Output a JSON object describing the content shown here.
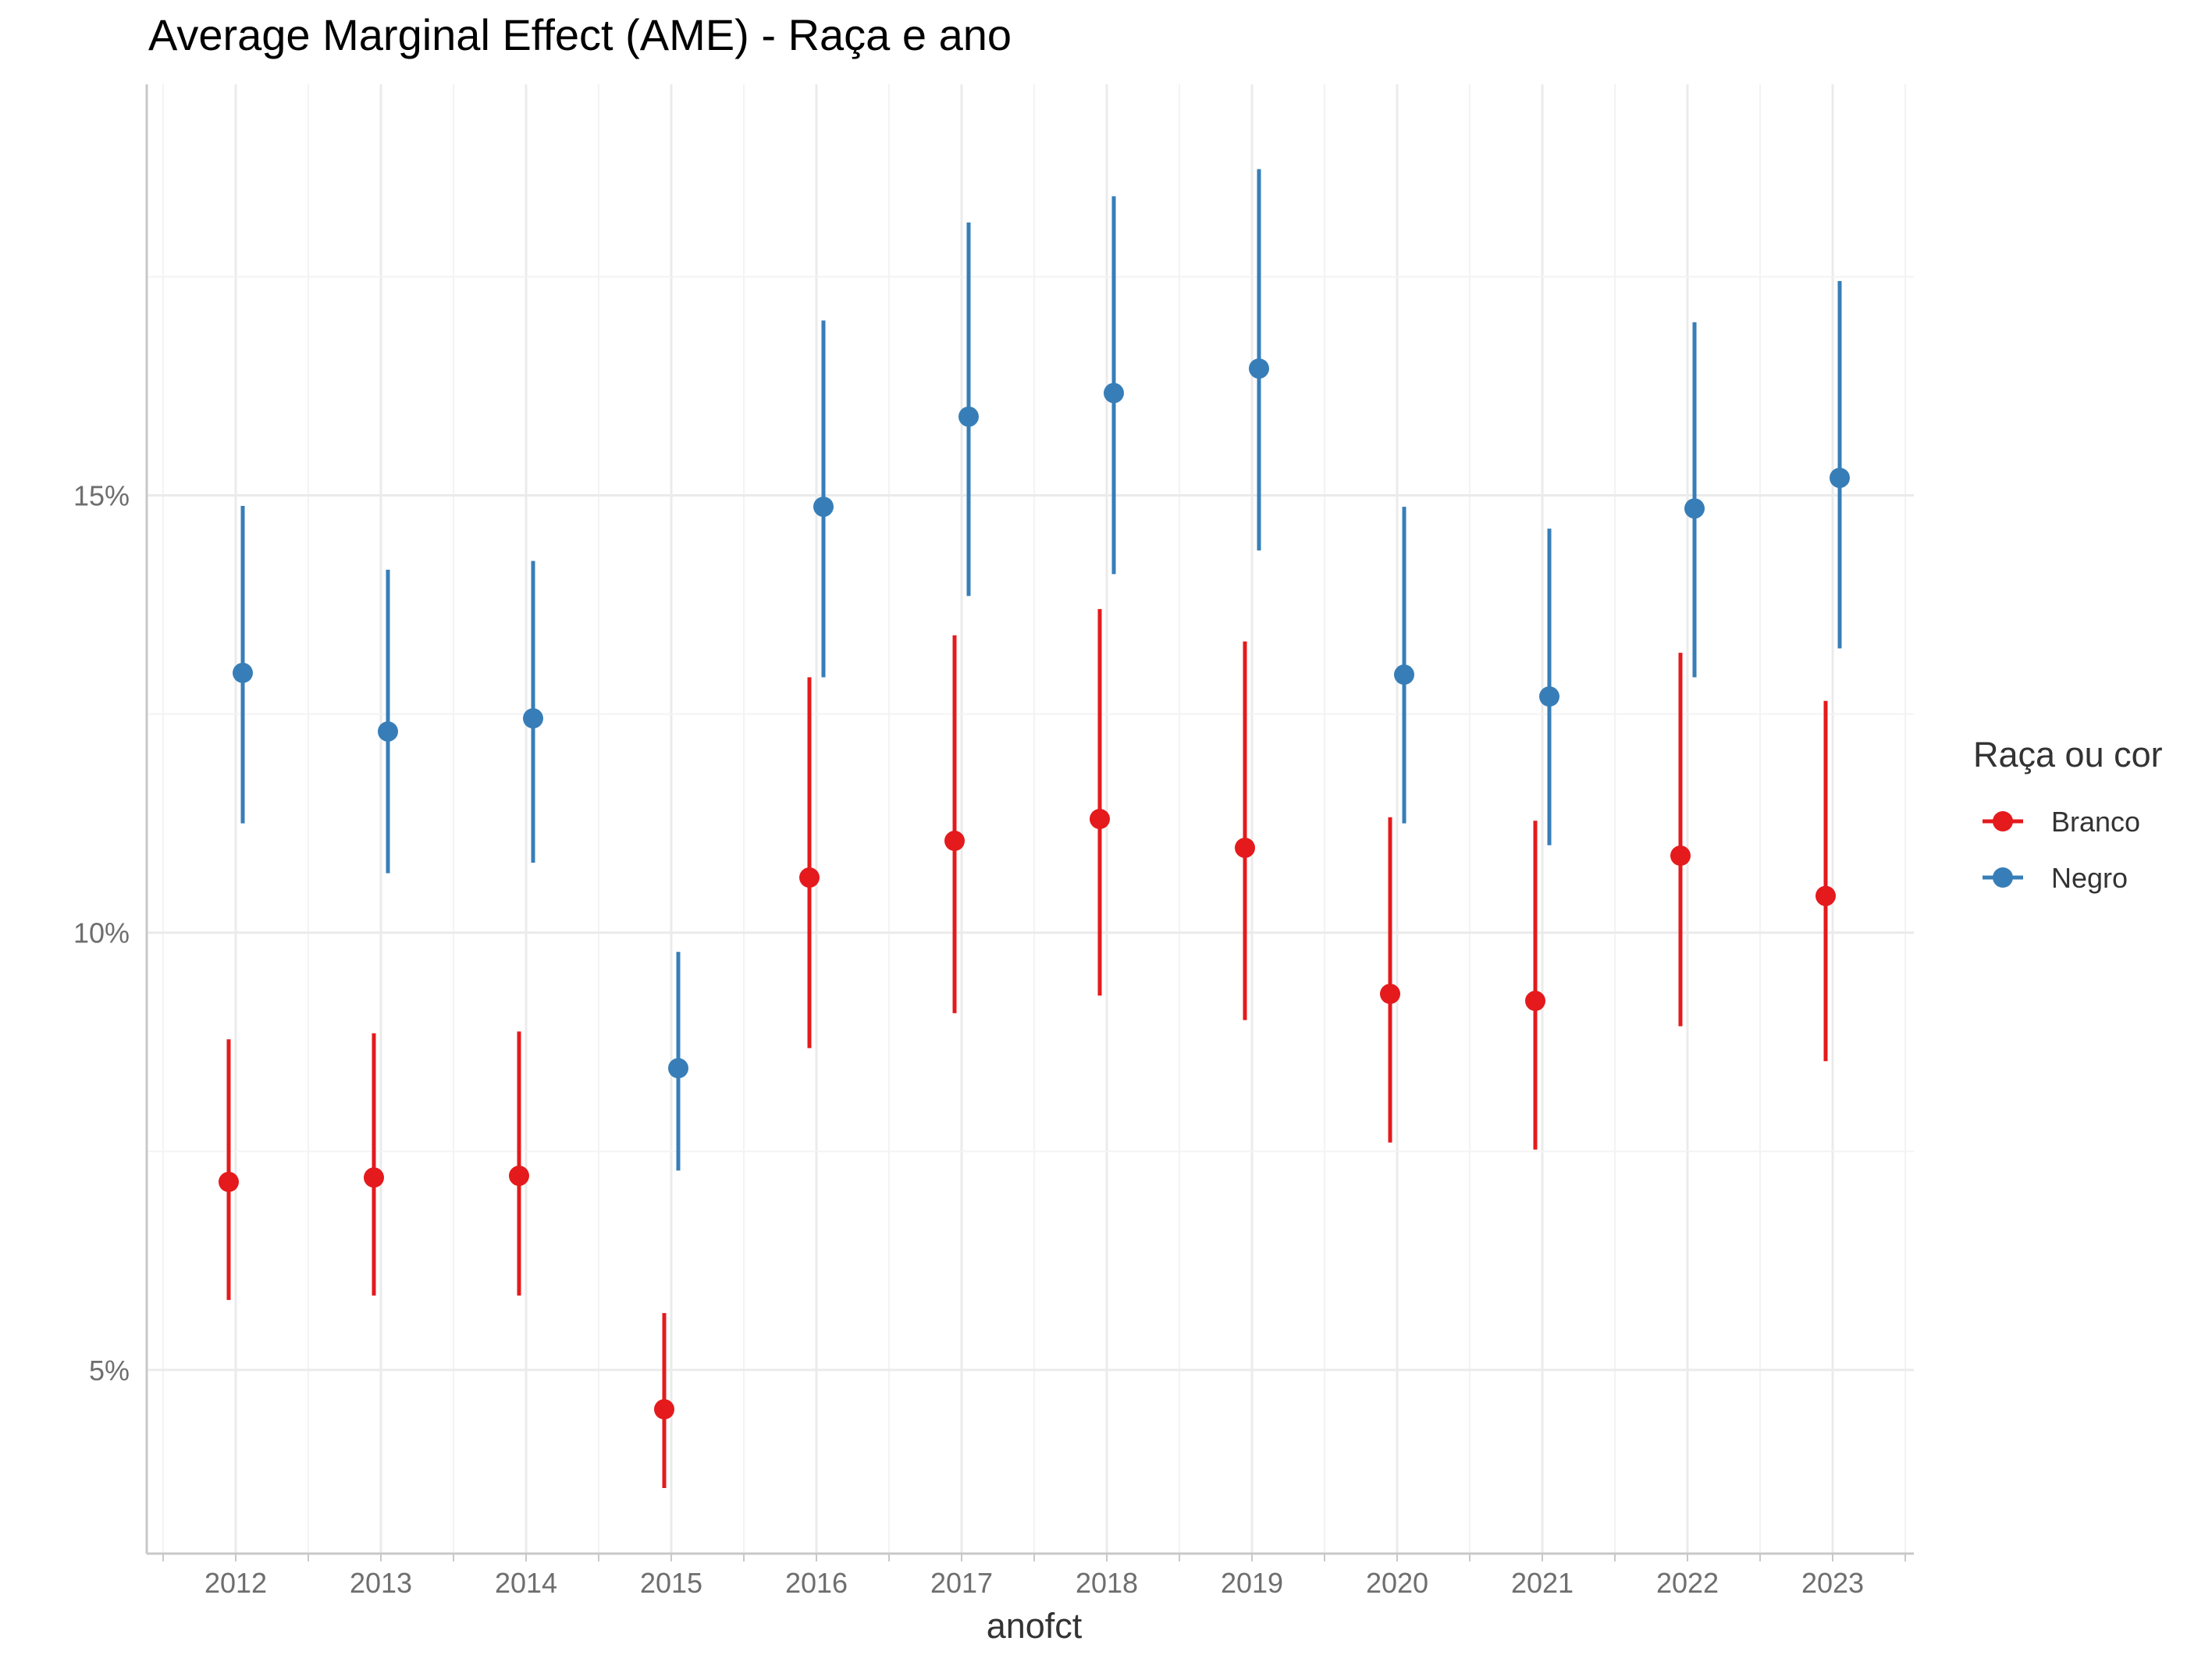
{
  "chart_data": {
    "type": "scatter",
    "title": "Average Marginal Effect (AME) - Raça e ano",
    "xlabel": "anofct",
    "ylabel": "",
    "categories": [
      "2012",
      "2013",
      "2014",
      "2015",
      "2016",
      "2017",
      "2018",
      "2019",
      "2020",
      "2021",
      "2022",
      "2023"
    ],
    "y_ticks": [
      {
        "value": 0.05,
        "label": "5%"
      },
      {
        "value": 0.1,
        "label": "10%"
      },
      {
        "value": 0.15,
        "label": "15%"
      }
    ],
    "ylim": [
      0.029,
      0.197
    ],
    "grid": true,
    "legend_title": "Raça ou cor",
    "legend_position": "right",
    "series": [
      {
        "name": "Branco",
        "color": "#e41a1c",
        "values": [
          0.0715,
          0.072,
          0.0722,
          0.0455,
          0.1063,
          0.1105,
          0.113,
          0.1097,
          0.093,
          0.0922,
          0.1088,
          0.1042
        ],
        "lower": [
          0.058,
          0.0585,
          0.0585,
          0.0365,
          0.0868,
          0.0908,
          0.0928,
          0.09,
          0.076,
          0.0752,
          0.0893,
          0.0853
        ],
        "upper": [
          0.0878,
          0.0885,
          0.0887,
          0.0565,
          0.1292,
          0.134,
          0.137,
          0.1333,
          0.1132,
          0.1128,
          0.132,
          0.1265
        ]
      },
      {
        "name": "Negro",
        "color": "#377eb8",
        "values": [
          0.1297,
          0.123,
          0.1245,
          0.0845,
          0.1487,
          0.159,
          0.1617,
          0.1645,
          0.1295,
          0.127,
          0.1485,
          0.152
        ],
        "lower": [
          0.1125,
          0.1068,
          0.108,
          0.0728,
          0.1292,
          0.1385,
          0.141,
          0.1437,
          0.1125,
          0.11,
          0.1292,
          0.1325
        ],
        "upper": [
          0.1488,
          0.1415,
          0.1425,
          0.0978,
          0.17,
          0.1812,
          0.1842,
          0.1873,
          0.1487,
          0.1462,
          0.1698,
          0.1745
        ]
      }
    ]
  }
}
